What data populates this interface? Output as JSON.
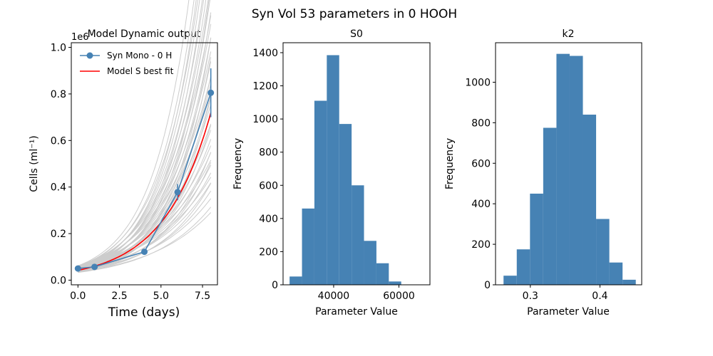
{
  "figure": {
    "suptitle": "Syn Vol 53  parameters in 0 HOOH"
  },
  "chart_data": [
    {
      "type": "line",
      "title": "Model Dynamic output",
      "xlabel": "Time (days)",
      "ylabel": "Cells (ml$^{-1}$)",
      "ylabel_display": "Cells (ml⁻¹)",
      "y_offset_label": "1e6",
      "xlim": [
        -0.4,
        8.4
      ],
      "ylim": [
        -0.02,
        1.02
      ],
      "xticks": [
        0.0,
        2.5,
        5.0,
        7.5
      ],
      "xtick_labels": [
        "0.0",
        "2.5",
        "5.0",
        "7.5"
      ],
      "yticks": [
        0.0,
        0.2,
        0.4,
        0.6,
        0.8,
        1.0
      ],
      "ytick_labels": [
        "0.0",
        "0.2",
        "0.4",
        "0.6",
        "0.8",
        "1.0"
      ],
      "legend": {
        "placement": "upper-left",
        "entries": [
          "Syn Mono - 0 H",
          " Model S best fit"
        ]
      },
      "series": [
        {
          "name": "Syn Mono - 0 H",
          "kind": "line-markers",
          "color": "#4682b4",
          "x": [
            0,
            1,
            4,
            6,
            8
          ],
          "y": [
            0.05,
            0.057,
            0.122,
            0.378,
            0.805
          ],
          "yerr": [
            0.004,
            0.004,
            0.006,
            0.035,
            0.105
          ]
        },
        {
          "name": " Model S best fit",
          "kind": "model",
          "color": "#ff0000",
          "y0": 0.042,
          "rate": 0.355,
          "x_range": [
            0,
            8
          ]
        }
      ],
      "ensemble": {
        "color": "#cccccc",
        "x_range": [
          0,
          8
        ],
        "y0_range": [
          0.033,
          0.062
        ],
        "rate_range": [
          0.26,
          0.45
        ]
      }
    },
    {
      "type": "bar",
      "title": "S0",
      "xlabel": "Parameter Value",
      "ylabel": "Frequency",
      "color": "#4682b4",
      "xlim": [
        24500,
        69500
      ],
      "ylim": [
        0,
        1460
      ],
      "xticks": [
        40000,
        60000
      ],
      "xtick_labels": [
        "40000",
        "60000"
      ],
      "yticks": [
        0,
        200,
        400,
        600,
        800,
        1000,
        1200,
        1400
      ],
      "ytick_labels": [
        "0",
        "200",
        "400",
        "600",
        "800",
        "1000",
        "1200",
        "1400"
      ],
      "bin_edges": [
        26500,
        30300,
        34100,
        37900,
        41700,
        45500,
        49300,
        53100,
        56900,
        60700,
        64500
      ],
      "values": [
        50,
        460,
        1110,
        1385,
        970,
        600,
        265,
        130,
        20,
        0
      ]
    },
    {
      "type": "bar",
      "title": "k2",
      "xlabel": "Parameter Value",
      "ylabel": "Frequency",
      "color": "#4682b4",
      "xlim": [
        0.25,
        0.46
      ],
      "ylim": [
        0,
        1195
      ],
      "xticks": [
        0.3,
        0.4
      ],
      "xtick_labels": [
        "0.3",
        "0.4"
      ],
      "yticks": [
        0,
        200,
        400,
        600,
        800,
        1000
      ],
      "ytick_labels": [
        "0",
        "200",
        "400",
        "600",
        "800",
        "1000"
      ],
      "bin_edges": [
        0.2615,
        0.2805,
        0.2995,
        0.3185,
        0.3375,
        0.3565,
        0.3755,
        0.3945,
        0.4135,
        0.4325,
        0.4515
      ],
      "values": [
        45,
        175,
        450,
        775,
        1140,
        1130,
        840,
        325,
        110,
        25
      ]
    }
  ]
}
